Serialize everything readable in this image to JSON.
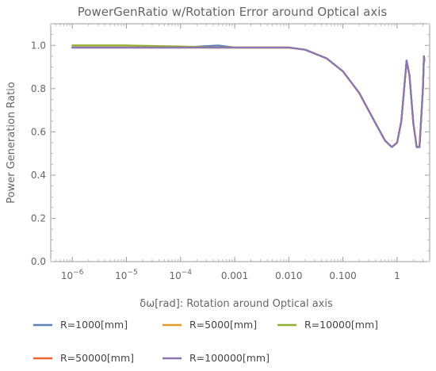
{
  "chart_data": {
    "type": "line",
    "title": "PowerGenRatio w/Rotation Error around  Optical axis",
    "xlabel": "δω[rad]: Rotation around Optical axis",
    "ylabel": "Power Generation Ratio",
    "x_scale": "log",
    "xlim": [
      4e-07,
      4.0
    ],
    "ylim": [
      0,
      1.1
    ],
    "x_ticks": [
      {
        "value": 1e-06,
        "base": "10",
        "exp": "−6"
      },
      {
        "value": 1e-05,
        "base": "10",
        "exp": "−5"
      },
      {
        "value": 0.0001,
        "base": "10",
        "exp": "−4"
      },
      {
        "value": 0.001,
        "label": "0.001"
      },
      {
        "value": 0.01,
        "label": "0.010"
      },
      {
        "value": 0.1,
        "label": "0.100"
      },
      {
        "value": 1,
        "label": "1"
      }
    ],
    "y_ticks": [
      {
        "value": 0.0,
        "label": "0.0"
      },
      {
        "value": 0.2,
        "label": "0.2"
      },
      {
        "value": 0.4,
        "label": "0.4"
      },
      {
        "value": 0.6,
        "label": "0.6"
      },
      {
        "value": 0.8,
        "label": "0.8"
      },
      {
        "value": 1.0,
        "label": "1.0"
      }
    ],
    "grid": false,
    "legend_position": "bottom",
    "series": [
      {
        "name": "R=1000[mm]",
        "color": "#5e81b5",
        "x": [
          1e-06,
          1e-05,
          0.0001,
          0.0005,
          0.001,
          0.003,
          0.01,
          0.02,
          0.05,
          0.1,
          0.2,
          0.4,
          0.6,
          0.8,
          1.0,
          1.2,
          1.5,
          1.7,
          2.0,
          2.3,
          2.6,
          3.0,
          3.14,
          3.2
        ],
        "y": [
          0.99,
          0.99,
          0.99,
          1.0,
          0.99,
          0.99,
          0.99,
          0.98,
          0.94,
          0.88,
          0.78,
          0.64,
          0.56,
          0.53,
          0.55,
          0.65,
          0.93,
          0.86,
          0.64,
          0.53,
          0.53,
          0.8,
          0.95,
          0.93
        ]
      },
      {
        "name": "R=5000[mm]",
        "color": "#e19c24",
        "x": [
          1e-06,
          1e-05,
          0.0001,
          0.0005,
          0.001,
          0.003,
          0.01,
          0.02,
          0.05,
          0.1,
          0.2,
          0.4,
          0.6,
          0.8,
          1.0,
          1.2,
          1.5,
          1.7,
          2.0,
          2.3,
          2.6,
          3.0,
          3.14,
          3.2
        ],
        "y": [
          1.0,
          1.0,
          0.99,
          0.99,
          0.99,
          0.99,
          0.99,
          0.98,
          0.94,
          0.88,
          0.78,
          0.64,
          0.56,
          0.53,
          0.55,
          0.65,
          0.93,
          0.86,
          0.64,
          0.53,
          0.53,
          0.8,
          0.95,
          0.93
        ]
      },
      {
        "name": "R=10000[mm]",
        "color": "#8fb032",
        "x": [
          1e-06,
          1e-05,
          0.0001,
          0.0005,
          0.001,
          0.003,
          0.01,
          0.02,
          0.05,
          0.1,
          0.2,
          0.4,
          0.6,
          0.8,
          1.0,
          1.2,
          1.5,
          1.7,
          2.0,
          2.3,
          2.6,
          3.0,
          3.14,
          3.2
        ],
        "y": [
          1.0,
          1.0,
          0.995,
          0.99,
          0.99,
          0.99,
          0.99,
          0.98,
          0.94,
          0.88,
          0.78,
          0.64,
          0.56,
          0.53,
          0.55,
          0.65,
          0.93,
          0.86,
          0.64,
          0.53,
          0.53,
          0.8,
          0.95,
          0.93
        ]
      },
      {
        "name": "R=50000[mm]",
        "color": "#eb6235",
        "x": [
          1e-06,
          1e-05,
          0.0001,
          0.0005,
          0.001,
          0.003,
          0.01,
          0.02,
          0.05,
          0.1,
          0.2,
          0.4,
          0.6,
          0.8,
          1.0,
          1.2,
          1.5,
          1.7,
          2.0,
          2.3,
          2.6,
          3.0,
          3.14,
          3.2
        ],
        "y": [
          0.99,
          0.99,
          0.99,
          0.99,
          0.99,
          0.99,
          0.99,
          0.98,
          0.94,
          0.88,
          0.78,
          0.64,
          0.56,
          0.53,
          0.55,
          0.65,
          0.93,
          0.86,
          0.64,
          0.53,
          0.53,
          0.8,
          0.95,
          0.93
        ]
      },
      {
        "name": "R=100000[mm]",
        "color": "#8778b3",
        "x": [
          1e-06,
          1e-05,
          0.0001,
          0.0005,
          0.001,
          0.003,
          0.01,
          0.02,
          0.05,
          0.1,
          0.2,
          0.4,
          0.6,
          0.8,
          1.0,
          1.2,
          1.5,
          1.7,
          2.0,
          2.3,
          2.6,
          3.0,
          3.14,
          3.2
        ],
        "y": [
          0.99,
          0.99,
          0.99,
          0.99,
          0.99,
          0.99,
          0.99,
          0.98,
          0.94,
          0.88,
          0.78,
          0.64,
          0.56,
          0.53,
          0.55,
          0.65,
          0.93,
          0.86,
          0.64,
          0.53,
          0.53,
          0.8,
          0.95,
          0.93
        ]
      }
    ]
  }
}
